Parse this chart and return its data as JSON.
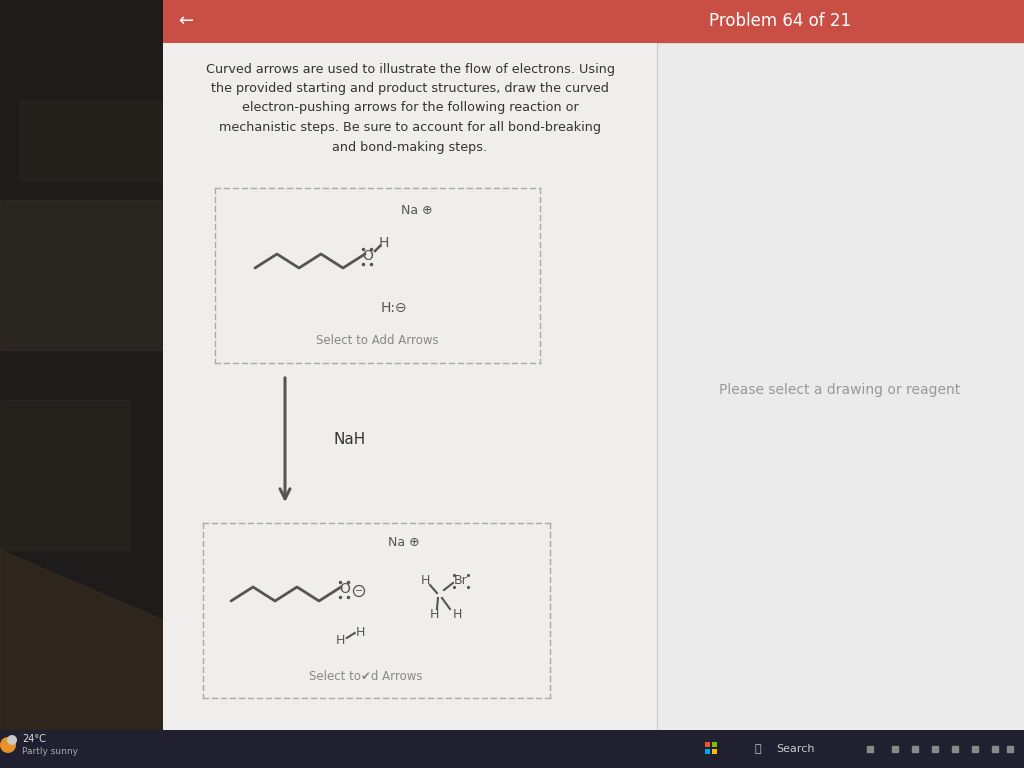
{
  "bg_color": "#2a2a2a",
  "center_bg": "#f0eeec",
  "right_bg": "#ebebeb",
  "header_color": "#c94f45",
  "header_text": "Problem 64 of 21",
  "header_text_color": "#ffffff",
  "back_arrow": "←",
  "instruction_text": "Curved arrows are used to illustrate the flow of electrons. Using\nthe provided starting and product structures, draw the curved\nelectron-pushing arrows for the following reaction or\nmechanistic steps. Be sure to account for all bond-breaking\nand bond-making steps.",
  "reagent_label": "NaH",
  "box1_label_top": "Na ⊕",
  "box1_mol_label": "H:⊖",
  "box1_select_text": "Select to Add Arrows",
  "box2_label_top": "Na ⊕",
  "box2_select_text": "Select to✔d Arrows",
  "right_panel_text": "Please select a drawing or reagent",
  "taskbar_search": "Q  Search",
  "weather_text": "24°C\nPartly sunny",
  "dashed_color": "#aaaaaa",
  "mol_color": "#555555",
  "text_color": "#333333",
  "gray_text": "#888888",
  "taskbar_color": "#202030"
}
